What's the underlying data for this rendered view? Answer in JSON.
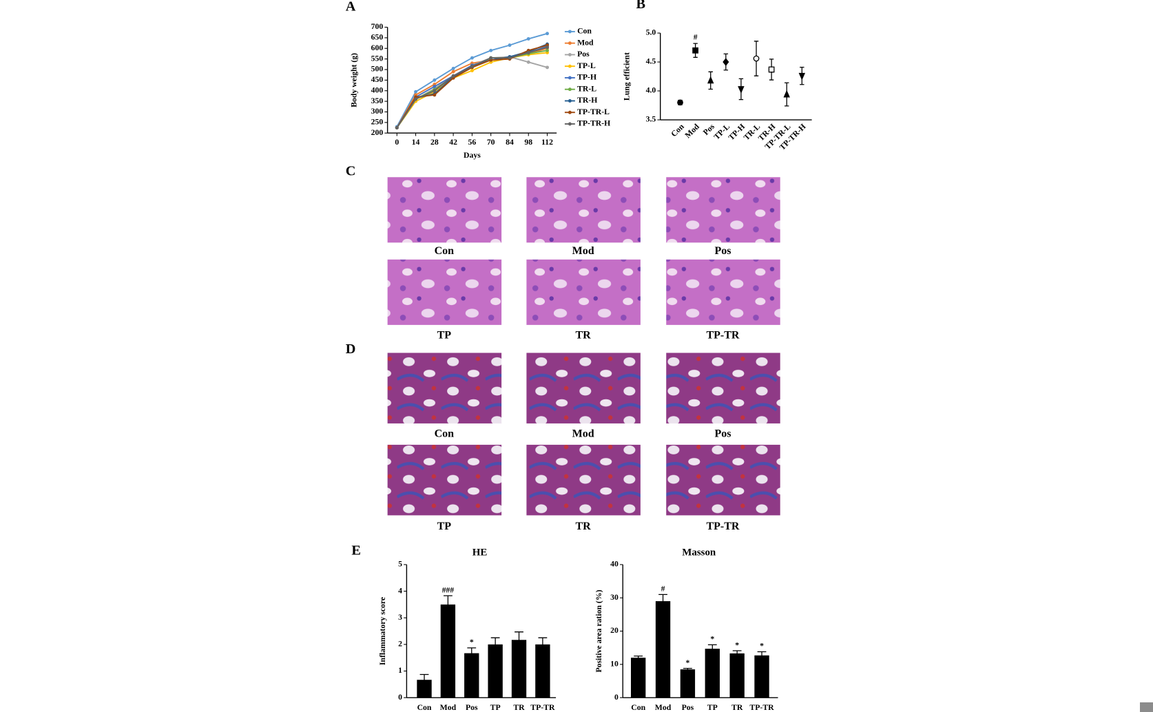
{
  "chart_data": [
    {
      "type": "line",
      "panel": "A",
      "xlabel": "Days",
      "ylabel": "Body weight (g)",
      "x": [
        0,
        14,
        28,
        42,
        56,
        70,
        84,
        98,
        112
      ],
      "xlim": [
        -7,
        119
      ],
      "xticks": [
        0,
        14,
        28,
        42,
        56,
        70,
        84,
        98,
        112
      ],
      "ylim": [
        200,
        700
      ],
      "yticks": [
        200,
        250,
        300,
        350,
        400,
        450,
        500,
        550,
        600,
        650,
        700
      ],
      "series": [
        {
          "name": "Con",
          "color": "#5b9bd5",
          "values": [
            230,
            395,
            450,
            505,
            555,
            590,
            615,
            645,
            670
          ]
        },
        {
          "name": "Mod",
          "color": "#ed7d31",
          "values": [
            225,
            380,
            430,
            490,
            530,
            545,
            555,
            575,
            600
          ]
        },
        {
          "name": "Pos",
          "color": "#a5a5a5",
          "values": [
            225,
            360,
            410,
            470,
            520,
            555,
            560,
            535,
            510
          ]
        },
        {
          "name": "TP-L",
          "color": "#ffc000",
          "values": [
            225,
            350,
            395,
            460,
            495,
            535,
            555,
            570,
            580
          ]
        },
        {
          "name": "TP-H",
          "color": "#4472c4",
          "values": [
            225,
            370,
            420,
            470,
            520,
            545,
            560,
            580,
            610
          ]
        },
        {
          "name": "TR-L",
          "color": "#70ad47",
          "values": [
            225,
            360,
            405,
            465,
            510,
            555,
            555,
            575,
            590
          ]
        },
        {
          "name": "TR-H",
          "color": "#255e91",
          "values": [
            225,
            365,
            385,
            465,
            515,
            545,
            560,
            585,
            620
          ]
        },
        {
          "name": "TP-TR-L",
          "color": "#9e480e",
          "values": [
            225,
            370,
            380,
            460,
            510,
            545,
            550,
            590,
            615
          ]
        },
        {
          "name": "TP-TR-H",
          "color": "#636363",
          "values": [
            225,
            360,
            400,
            470,
            515,
            555,
            555,
            580,
            605
          ]
        }
      ]
    },
    {
      "type": "scatter",
      "panel": "B",
      "ylabel": "Lung efficient",
      "categories": [
        "Con",
        "Mod",
        "Pos",
        "TP-L",
        "TP-H",
        "TR-L",
        "TR-H",
        "TP-TR-L",
        "TP-TR-H"
      ],
      "values": [
        3.8,
        4.7,
        4.18,
        4.5,
        4.03,
        4.56,
        4.37,
        3.94,
        4.26
      ],
      "errors": [
        0.04,
        0.12,
        0.15,
        0.14,
        0.18,
        0.3,
        0.18,
        0.2,
        0.15
      ],
      "markers": [
        "circle",
        "square",
        "triangle",
        "diamond",
        "triangle-down",
        "circle-open",
        "square-open",
        "triangle",
        "triangle-down"
      ],
      "significance": [
        null,
        "#",
        null,
        null,
        null,
        null,
        null,
        null,
        null
      ],
      "color": "#000000",
      "ylim": [
        3.5,
        5.0
      ],
      "yticks": [
        3.5,
        {
          "value": 4,
          "label": "4.0"
        },
        4.5,
        {
          "value": 5,
          "label": "5.0"
        }
      ]
    },
    {
      "type": "bar",
      "panel": "E",
      "title": "HE",
      "ylabel": "Inflammatory score",
      "categories": [
        "Con",
        "Mod",
        "Pos",
        "TP",
        "TR",
        "TP-TR"
      ],
      "values": [
        0.67,
        3.5,
        1.67,
        2.0,
        2.17,
        2.0
      ],
      "errors": [
        0.2,
        0.33,
        0.2,
        0.25,
        0.3,
        0.25
      ],
      "significance": [
        null,
        "###",
        "*",
        null,
        null,
        null
      ],
      "color": "#000000",
      "ylim": [
        0,
        5
      ],
      "yticks": [
        0,
        1,
        2,
        3,
        4,
        5
      ]
    },
    {
      "type": "bar",
      "title": "Masson",
      "ylabel": "Positive area ration (%)",
      "categories": [
        "Con",
        "Mod",
        "Pos",
        "TP",
        "TR",
        "TP-TR"
      ],
      "values": [
        12,
        29,
        8.5,
        14.7,
        13.3,
        12.7
      ],
      "errors": [
        0.5,
        2,
        0.3,
        1.2,
        0.8,
        1.1
      ],
      "significance": [
        null,
        "#",
        "*",
        "*",
        "*",
        "*"
      ],
      "color": "#000000",
      "ylim": [
        0,
        40
      ],
      "yticks": [
        0,
        10,
        20,
        30,
        40
      ]
    }
  ],
  "histology": [
    {
      "panel": "C",
      "captions": [
        "Con",
        "Mod",
        "Pos",
        "TP",
        "TR",
        "TP-TR"
      ]
    },
    {
      "panel": "D",
      "captions": [
        "Con",
        "Mod",
        "Pos",
        "TP",
        "TR",
        "TP-TR"
      ]
    }
  ]
}
